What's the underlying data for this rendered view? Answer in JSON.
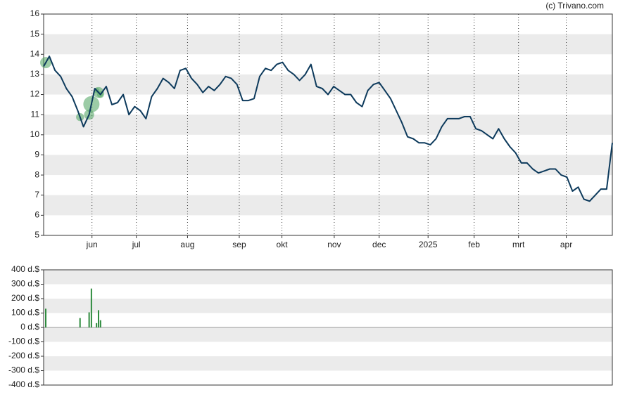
{
  "chart_data": [
    {
      "type": "line",
      "credit": "(c) Trivano.com",
      "color": "#0d3a5c",
      "bubble_color": "#5aaa6a",
      "values": [
        13.4,
        13.9,
        13.2,
        12.9,
        12.3,
        11.9,
        11.2,
        10.4,
        11.0,
        12.3,
        12.0,
        12.4,
        11.5,
        11.6,
        12.0,
        11.0,
        11.4,
        11.2,
        10.8,
        11.9,
        12.3,
        12.8,
        12.6,
        12.3,
        13.2,
        13.3,
        12.8,
        12.5,
        12.1,
        12.4,
        12.2,
        12.5,
        12.9,
        12.8,
        12.5,
        11.7,
        11.7,
        11.8,
        12.9,
        13.3,
        13.2,
        13.5,
        13.6,
        13.2,
        13.0,
        12.7,
        13.0,
        13.5,
        12.4,
        12.3,
        12.0,
        12.4,
        12.2,
        12.0,
        12.0,
        11.6,
        11.4,
        12.2,
        12.5,
        12.6,
        12.2,
        11.8,
        11.2,
        10.6,
        9.9,
        9.8,
        9.6,
        9.6,
        9.5,
        9.8,
        10.4,
        10.8,
        10.8,
        10.8,
        10.9,
        10.9,
        10.3,
        10.2,
        10.0,
        9.8,
        10.3,
        9.8,
        9.4,
        9.1,
        8.6,
        8.6,
        8.3,
        8.1,
        8.2,
        8.3,
        8.3,
        8.0,
        7.9,
        7.2,
        7.4,
        6.8,
        6.7,
        7.0,
        7.3,
        7.3,
        9.6
      ],
      "xlim": [
        0,
        100
      ],
      "xticks": [
        {
          "value": 8.5,
          "label": "jun"
        },
        {
          "value": 16.3,
          "label": "jul"
        },
        {
          "value": 25.3,
          "label": "aug"
        },
        {
          "value": 34.4,
          "label": "sep"
        },
        {
          "value": 41.9,
          "label": "okt"
        },
        {
          "value": 51.1,
          "label": "nov"
        },
        {
          "value": 59,
          "label": "dec"
        },
        {
          "value": 67.6,
          "label": "2025"
        },
        {
          "value": 75.7,
          "label": "feb"
        },
        {
          "value": 83.5,
          "label": "mrt"
        },
        {
          "value": 91.9,
          "label": "apr"
        }
      ],
      "ylim": [
        5,
        16
      ],
      "yticks": [
        5,
        6,
        7,
        8,
        9,
        10,
        11,
        12,
        13,
        14,
        15,
        16
      ]
    },
    {
      "type": "bar",
      "color": "#2e8b3e",
      "x": [
        0.37,
        6.4,
        8.0,
        8.4,
        9.3,
        9.65,
        10.0
      ],
      "values": [
        130,
        65,
        105,
        270,
        30,
        120,
        50
      ],
      "xlim": [
        0,
        100
      ],
      "ylim": [
        -400,
        400
      ],
      "yticks": [
        {
          "value": 400,
          "label": "400 d.$"
        },
        {
          "value": 300,
          "label": "300 d.$"
        },
        {
          "value": 200,
          "label": "200 d.$"
        },
        {
          "value": 100,
          "label": "100 d.$"
        },
        {
          "value": 0,
          "label": "0 d.$"
        },
        {
          "value": -100,
          "label": "-100 d.$"
        },
        {
          "value": -200,
          "label": "-200 d.$"
        },
        {
          "value": -300,
          "label": "-300 d.$"
        },
        {
          "value": -400,
          "label": "-400 d.$"
        }
      ]
    }
  ]
}
